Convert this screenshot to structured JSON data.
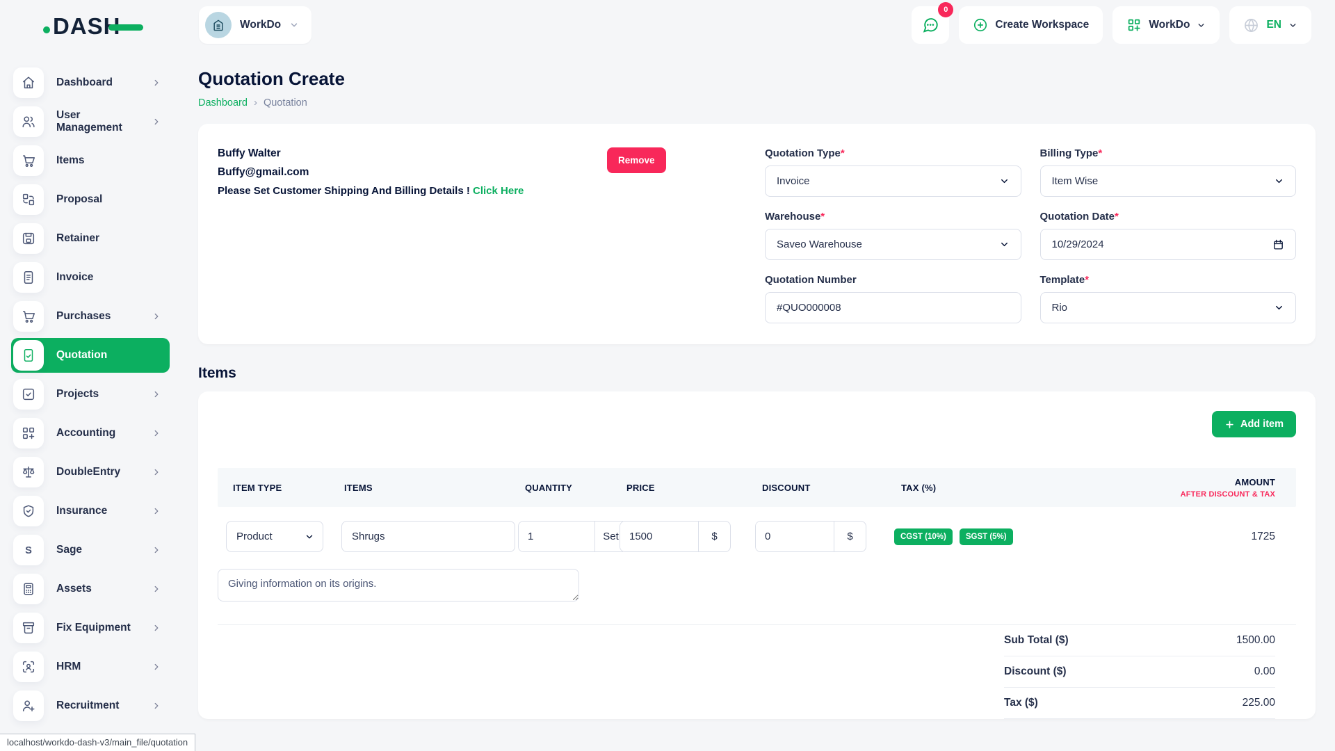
{
  "ui": {
    "required_mark": "*",
    "breadcrumb_separator": "›"
  },
  "colors": {
    "primary_green": "#0CAF60",
    "danger_pink": "#F8285A",
    "dark_navy": "#071437"
  },
  "app": {
    "logo_text": "DASH",
    "status_bar_url": "localhost/workdo-dash-v3/main_file/quotation"
  },
  "header": {
    "workspace_pill": "WorkDo",
    "notification_count": "0",
    "create_workspace_label": "Create Workspace",
    "workspace_switcher_label": "WorkDo",
    "language_label": "EN"
  },
  "sidebar": {
    "items": [
      {
        "label": "Dashboard",
        "icon": "home-icon",
        "chevron": true,
        "active": false
      },
      {
        "label": "User Management",
        "icon": "users-icon",
        "chevron": true,
        "active": false
      },
      {
        "label": "Items",
        "icon": "cart-icon",
        "chevron": false,
        "active": false
      },
      {
        "label": "Proposal",
        "icon": "swap-grid-icon",
        "chevron": false,
        "active": false
      },
      {
        "label": "Retainer",
        "icon": "floppy-icon",
        "chevron": false,
        "active": false
      },
      {
        "label": "Invoice",
        "icon": "file-lines-icon",
        "chevron": false,
        "active": false
      },
      {
        "label": "Purchases",
        "icon": "cart-icon",
        "chevron": true,
        "active": false
      },
      {
        "label": "Quotation",
        "icon": "file-check-icon",
        "chevron": false,
        "active": true
      },
      {
        "label": "Projects",
        "icon": "check-square-icon",
        "chevron": true,
        "active": false
      },
      {
        "label": "Accounting",
        "icon": "grid-plus-icon",
        "chevron": true,
        "active": false
      },
      {
        "label": "DoubleEntry",
        "icon": "scale-icon",
        "chevron": true,
        "active": false
      },
      {
        "label": "Insurance",
        "icon": "shield-check-icon",
        "chevron": true,
        "active": false
      },
      {
        "label": "Sage",
        "icon": "letter-s-icon",
        "chevron": true,
        "active": false
      },
      {
        "label": "Assets",
        "icon": "calculator-icon",
        "chevron": true,
        "active": false
      },
      {
        "label": "Fix Equipment",
        "icon": "archive-icon",
        "chevron": true,
        "active": false
      },
      {
        "label": "HRM",
        "icon": "user-scan-icon",
        "chevron": true,
        "active": false
      },
      {
        "label": "Recruitment",
        "icon": "user-plus-icon",
        "chevron": true,
        "active": false
      }
    ]
  },
  "page": {
    "title": "Quotation Create",
    "breadcrumb_home": "Dashboard",
    "breadcrumb_current": "Quotation"
  },
  "customer": {
    "name": "Buffy Walter",
    "email": "Buffy@gmail.com",
    "note": "Please Set Customer Shipping And Billing Details !",
    "note_link": "Click Here",
    "remove_label": "Remove"
  },
  "form": {
    "quotation_type": {
      "label": "Quotation Type",
      "value": "Invoice"
    },
    "billing_type": {
      "label": "Billing Type",
      "value": "Item Wise"
    },
    "warehouse": {
      "label": "Warehouse",
      "value": "Saveo Warehouse"
    },
    "quotation_date": {
      "label": "Quotation Date",
      "value": "10/29/2024"
    },
    "quotation_number": {
      "label": "Quotation Number",
      "value": "#QUO000008"
    },
    "template": {
      "label": "Template",
      "value": "Rio"
    }
  },
  "items_section": {
    "title": "Items",
    "add_item_label": "Add item",
    "table": {
      "headers": [
        "ITEM TYPE",
        "ITEMS",
        "QUANTITY",
        "PRICE",
        "DISCOUNT",
        "TAX (%)",
        "AMOUNT"
      ],
      "amount_subheader": "AFTER DISCOUNT & TAX",
      "row": {
        "item_type": "Product",
        "item_name": "Shrugs",
        "quantity": "1",
        "quantity_unit": "Set",
        "price": "1500",
        "price_unit": "$",
        "discount": "0",
        "discount_unit": "$",
        "taxes": [
          "CGST (10%)",
          "SGST (5%)"
        ],
        "amount": "1725",
        "description": "Giving information on its origins."
      },
      "totals": [
        {
          "label": "Sub Total ($)",
          "value": "1500.00"
        },
        {
          "label": "Discount ($)",
          "value": "0.00"
        },
        {
          "label": "Tax ($)",
          "value": "225.00"
        }
      ]
    }
  }
}
